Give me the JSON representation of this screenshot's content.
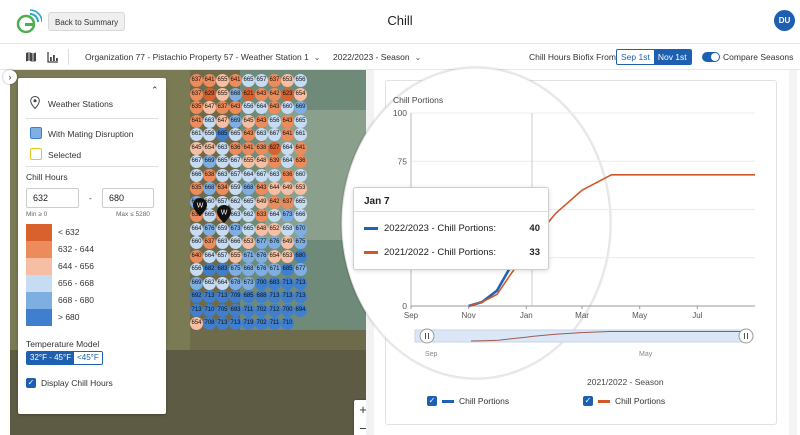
{
  "header": {
    "back_label": "Back to Summary",
    "title": "Chill",
    "user_initials": "DU"
  },
  "toolbar": {
    "location": "Organization 77 - Pistachio Property 57 - Weather Station 1",
    "season": "2022/2023 - Season",
    "biofix_label": "Chill Hours Biofix From",
    "biofix_options": [
      "Sep 1st",
      "Nov 1st"
    ],
    "biofix_selected": "Nov 1st",
    "compare_label": "Compare Seasons",
    "compare_on": true
  },
  "panel": {
    "weather_stations": "Weather Stations",
    "mating_disruption": "With Mating Disruption",
    "selected": "Selected",
    "chill_hours_title": "Chill Hours",
    "min_value": "632",
    "max_value": "680",
    "range_dash": "-",
    "min_hint": "Min ≥ 0",
    "max_hint": "Max ≤ 5280",
    "scale": [
      {
        "label": "< 632",
        "color": "#d9612e"
      },
      {
        "label": "632 - 644",
        "color": "#ec8c5c"
      },
      {
        "label": "644 - 656",
        "color": "#f6bfa3"
      },
      {
        "label": "656 - 668",
        "color": "#c6dcf3"
      },
      {
        "label": "668 - 680",
        "color": "#7eaee2"
      },
      {
        "label": "> 680",
        "color": "#3f7fcd"
      }
    ],
    "temperature_model": "Temperature Model",
    "temp_options": [
      "32°F - 45°F",
      "<45°F"
    ],
    "temp_selected": "32°F - 45°F",
    "display_chill_hours": "Display Chill Hours"
  },
  "map": {
    "pins": [
      "W",
      "W"
    ],
    "zoom_in": "+",
    "zoom_out": "−",
    "tile_values": [
      "637",
      "641",
      "655",
      "641",
      "665",
      "657",
      "637",
      "653",
      "656",
      "637",
      "629",
      "655",
      "668",
      "621",
      "643",
      "642",
      "623",
      "654",
      "635",
      "647",
      "637",
      "643",
      "656",
      "664",
      "643",
      "660",
      "669",
      "641",
      "663",
      "647",
      "669",
      "645",
      "643",
      "656",
      "643",
      "665",
      "661",
      "656",
      "685",
      "665",
      "643",
      "663",
      "667",
      "641",
      "661",
      "645",
      "654",
      "663",
      "636",
      "641",
      "638",
      "627",
      "664",
      "641",
      "667",
      "669",
      "665",
      "667",
      "655",
      "648",
      "639",
      "664",
      "636",
      "666",
      "638",
      "663",
      "657",
      "664",
      "667",
      "663",
      "636",
      "660",
      "635",
      "668",
      "634",
      "659",
      "668",
      "643",
      "644",
      "649",
      "653",
      "669",
      "660",
      "657",
      "662",
      "665",
      "649",
      "642",
      "637",
      "665",
      "633",
      "665",
      "639",
      "663",
      "662",
      "633",
      "664",
      "673",
      "666",
      "664",
      "676",
      "659",
      "673",
      "665",
      "648",
      "652",
      "658",
      "670",
      "660",
      "637",
      "663",
      "666",
      "653",
      "677",
      "676",
      "649",
      "675",
      "640",
      "664",
      "657",
      "655",
      "671",
      "676",
      "654",
      "653",
      "680",
      "656",
      "682",
      "683",
      "675",
      "668",
      "676",
      "671",
      "685",
      "677",
      "669",
      "662",
      "664",
      "678",
      "673",
      "700",
      "683",
      "713",
      "713",
      "692",
      "713",
      "713",
      "709",
      "685",
      "688",
      "713",
      "713",
      "713",
      "713",
      "710",
      "705",
      "693",
      "711",
      "702",
      "712",
      "700",
      "694",
      "654",
      "708",
      "713",
      "713",
      "719",
      "702",
      "711",
      "710"
    ]
  },
  "chart_data": {
    "type": "line",
    "ylabel": "Chill Portions",
    "ylim": [
      0,
      100
    ],
    "yticks": [
      0,
      25,
      50,
      75,
      100
    ],
    "x_ticks": [
      "Sep",
      "Nov",
      "Jan",
      "Mar",
      "May",
      "Jul"
    ],
    "navigator_ticks": [
      "Sep",
      "May"
    ],
    "series": [
      {
        "name": "2022/2023 - Chill Portions",
        "color": "#1f64b4",
        "x": [
          "Nov 1",
          "Nov 15",
          "Dec 1",
          "Dec 15",
          "Jan 1",
          "Jan 7"
        ],
        "values": [
          0,
          2,
          8,
          20,
          34,
          40
        ]
      },
      {
        "name": "2021/2022 - Chill Portions",
        "color": "#d2582a",
        "x": [
          "Nov 1",
          "Nov 15",
          "Dec 1",
          "Dec 15",
          "Jan 1",
          "Jan 7",
          "Feb 1",
          "Mar 1",
          "Apr 1",
          "May 1",
          "Jul 1",
          "Aug 31"
        ],
        "values": [
          0,
          2,
          6,
          16,
          28,
          33,
          48,
          60,
          68,
          68,
          68,
          68
        ]
      }
    ],
    "tooltip": {
      "date": "Jan 7",
      "rows": [
        {
          "label": "2022/2023 - Chill Portions:",
          "value": "40",
          "color": "#1f64b4"
        },
        {
          "label": "2021/2022 - Chill Portions:",
          "value": "33",
          "color": "#d2582a"
        }
      ]
    },
    "season_titles": [
      "2021/2022 - Season"
    ],
    "legend": [
      "Chill Portions",
      "Chill Portions"
    ]
  }
}
